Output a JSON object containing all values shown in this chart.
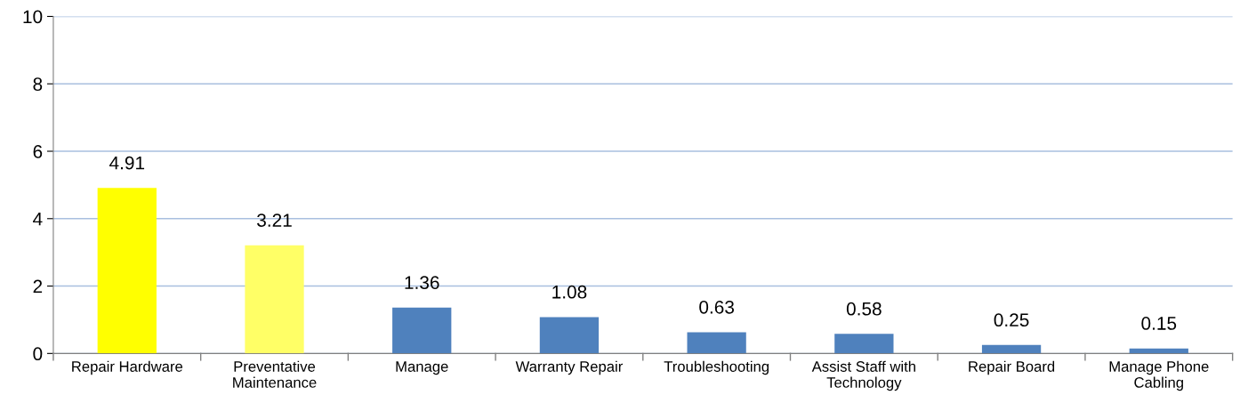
{
  "chart_data": {
    "type": "bar",
    "categories": [
      "Repair Hardware",
      "Preventative Maintenance",
      "Manage",
      "Warranty Repair",
      "Troubleshooting",
      "Assist Staff with Technology",
      "Repair Board",
      "Manage Phone Cabling"
    ],
    "values": [
      4.91,
      3.21,
      1.36,
      1.08,
      0.63,
      0.58,
      0.25,
      0.15
    ],
    "colors": [
      "#ffff00",
      "#ffff66",
      "#4f81bd",
      "#4f81bd",
      "#4f81bd",
      "#4f81bd",
      "#4f81bd",
      "#4f81bd"
    ],
    "ylim": [
      0,
      10
    ],
    "yticks": [
      0,
      2,
      4,
      6,
      8,
      10
    ],
    "grid": "y",
    "data_labels": true,
    "legend": false
  }
}
